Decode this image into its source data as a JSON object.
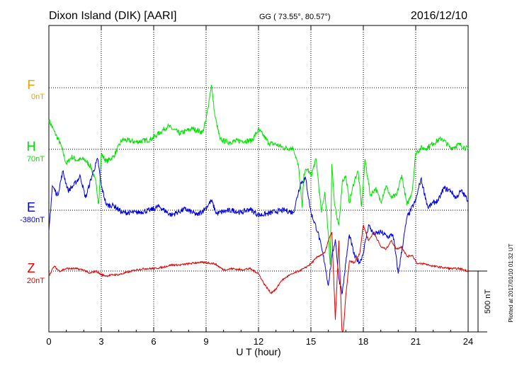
{
  "header": {
    "station": "Dixon Island (DIK)  [AARI]",
    "coords": "GG ( 73.55°,  80.57°)",
    "date": "2016/12/10"
  },
  "plotted_note": "Plotted at 2017/01/10 01:32 UT",
  "chart_data": {
    "type": "line",
    "title": "Dixon Island (DIK)  [AARI]",
    "xlabel": "U T (hour)",
    "ylabel": "",
    "xlim": [
      0,
      24
    ],
    "x_ticks": [
      0,
      3,
      6,
      9,
      12,
      15,
      18,
      21,
      24
    ],
    "tick_labels": [
      "0",
      "3",
      "6",
      "9",
      "12",
      "15",
      "18",
      "21",
      "24"
    ],
    "scale_bar": {
      "label": "500 nT",
      "value_nT": 500
    },
    "units": "nT",
    "series": [
      {
        "name": "F",
        "baseline_label": "0nT",
        "color": "#f0a000",
        "values": []
      },
      {
        "name": "H",
        "baseline_label": "70nT",
        "color": "#00e000",
        "x": [
          0,
          0.3,
          0.7,
          1.0,
          1.3,
          1.6,
          2.0,
          2.4,
          2.7,
          2.85,
          3.0,
          3.3,
          3.7,
          4.2,
          5.0,
          5.8,
          6.2,
          6.8,
          7.5,
          8.2,
          8.8,
          9.0,
          9.3,
          9.5,
          9.8,
          10.2,
          11.0,
          11.6,
          12.0,
          12.3,
          12.6,
          13.0,
          13.5,
          14.0,
          14.3,
          14.5,
          14.6,
          14.8,
          15.0,
          15.3,
          15.6,
          15.8,
          16.0,
          16.1,
          16.2,
          16.35,
          16.5,
          16.6,
          16.8,
          17.0,
          17.2,
          17.5,
          17.7,
          17.9,
          18.1,
          18.4,
          18.7,
          19.0,
          19.3,
          19.6,
          19.9,
          20.2,
          20.5,
          20.8,
          21.0,
          21.3,
          21.6,
          22.0,
          22.5,
          23.0,
          23.5,
          24.0
        ],
        "values": [
          240,
          150,
          30,
          -120,
          -60,
          -90,
          -80,
          -140,
          -280,
          -450,
          -40,
          -100,
          -60,
          80,
          60,
          80,
          120,
          190,
          130,
          170,
          140,
          240,
          530,
          280,
          80,
          60,
          70,
          70,
          160,
          110,
          50,
          40,
          10,
          10,
          -150,
          -480,
          -200,
          -160,
          -220,
          -80,
          -520,
          -350,
          -700,
          -950,
          -120,
          -450,
          -580,
          -620,
          -260,
          -220,
          -440,
          -250,
          -180,
          -470,
          -80,
          -380,
          -320,
          -430,
          -300,
          -400,
          -380,
          -210,
          -460,
          -340,
          -30,
          10,
          10,
          50,
          90,
          10,
          40,
          0
        ]
      },
      {
        "name": "E",
        "baseline_label": "-380nT",
        "color": "#0000e0",
        "x": [
          0,
          0.2,
          0.5,
          0.8,
          1.1,
          1.4,
          1.8,
          2.1,
          2.5,
          2.8,
          3.0,
          3.3,
          3.7,
          4.2,
          5.0,
          5.8,
          6.3,
          7.0,
          7.8,
          8.5,
          9.0,
          9.3,
          9.6,
          10.0,
          10.5,
          11.0,
          11.5,
          12.0,
          12.5,
          13.0,
          13.5,
          14.0,
          14.4,
          14.7,
          15.0,
          15.4,
          15.8,
          16.0,
          16.2,
          16.4,
          16.6,
          16.8,
          17.0,
          17.2,
          17.5,
          17.8,
          18.0,
          18.3,
          18.6,
          19.0,
          19.4,
          19.7,
          20.0,
          20.5,
          21.0,
          21.3,
          21.7,
          22.0,
          22.3,
          22.6,
          23.0,
          23.3,
          23.6,
          24.0
        ],
        "values": [
          -180,
          200,
          120,
          320,
          160,
          200,
          280,
          100,
          300,
          420,
          200,
          40,
          40,
          -20,
          -20,
          0,
          30,
          -40,
          10,
          -40,
          20,
          80,
          -30,
          -10,
          0,
          -20,
          10,
          -40,
          -30,
          -10,
          0,
          -20,
          220,
          260,
          -20,
          -180,
          -440,
          -620,
          -380,
          -240,
          -560,
          -680,
          -430,
          -200,
          -380,
          -430,
          -350,
          -120,
          -200,
          -180,
          -220,
          -200,
          -520,
          -60,
          80,
          260,
          20,
          60,
          80,
          180,
          160,
          100,
          160,
          80
        ]
      },
      {
        "name": "Z",
        "baseline_label": "20nT",
        "color": "#e00000",
        "x": [
          0,
          0.3,
          0.6,
          1.0,
          1.5,
          2.0,
          2.3,
          2.7,
          3.0,
          3.3,
          3.7,
          4.0,
          4.5,
          5.0,
          5.5,
          6.0,
          6.5,
          7.0,
          7.5,
          8.0,
          8.5,
          9.0,
          9.5,
          10.0,
          10.5,
          11.0,
          11.5,
          12.0,
          12.3,
          12.7,
          13.0,
          13.3,
          13.7,
          14.0,
          14.3,
          14.6,
          15.0,
          15.4,
          15.8,
          16.0,
          16.2,
          16.4,
          16.6,
          16.8,
          17.0,
          17.2,
          17.5,
          17.8,
          18.0,
          18.3,
          18.6,
          19.0,
          19.3,
          19.6,
          19.9,
          20.2,
          20.5,
          20.8,
          21.1,
          21.5,
          22.0,
          22.5,
          23.0,
          23.5,
          24.0
        ],
        "values": [
          -40,
          40,
          0,
          20,
          20,
          10,
          -20,
          0,
          -30,
          -40,
          -30,
          -30,
          -10,
          10,
          20,
          20,
          30,
          50,
          50,
          60,
          70,
          70,
          60,
          10,
          20,
          10,
          20,
          -20,
          -100,
          -180,
          -150,
          -80,
          -40,
          -20,
          0,
          20,
          60,
          120,
          150,
          250,
          320,
          -400,
          250,
          -600,
          -200,
          80,
          70,
          150,
          380,
          250,
          320,
          200,
          180,
          250,
          180,
          200,
          120,
          130,
          60,
          60,
          40,
          30,
          20,
          20,
          0
        ]
      }
    ]
  }
}
